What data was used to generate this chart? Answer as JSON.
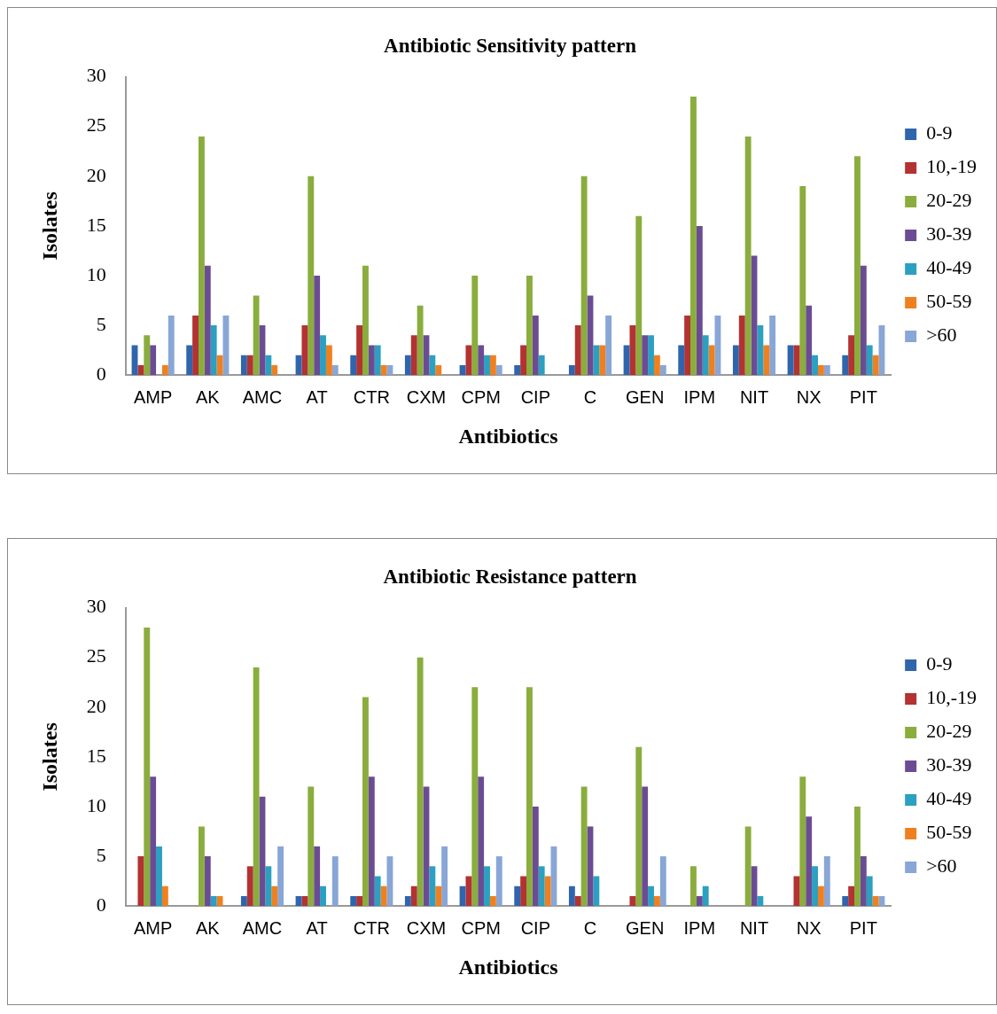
{
  "chart_data": [
    {
      "type": "bar",
      "title": "Antibiotic Sensitivity pattern",
      "xlabel": "Antibiotics",
      "ylabel": "Isolates",
      "categories": [
        "AMP",
        "AK",
        "AMC",
        "AT",
        "CTR",
        "CXM",
        "CPM",
        "CIP",
        "C",
        "GEN",
        "IPM",
        "NIT",
        "NX",
        "PIT"
      ],
      "ylim": [
        0,
        30
      ],
      "yticks": [
        0,
        5,
        10,
        15,
        20,
        25,
        30
      ],
      "grid": false,
      "legend": "right",
      "series": [
        {
          "name": "0-9",
          "color": "#2f65ad",
          "values": [
            3,
            3,
            2,
            2,
            2,
            2,
            1,
            1,
            1,
            3,
            3,
            3,
            3,
            2
          ]
        },
        {
          "name": "10,-19",
          "color": "#b33232",
          "values": [
            1,
            6,
            2,
            5,
            5,
            4,
            3,
            3,
            5,
            5,
            6,
            6,
            3,
            4
          ]
        },
        {
          "name": "20-29",
          "color": "#8aad3d",
          "values": [
            4,
            24,
            8,
            20,
            11,
            7,
            10,
            10,
            20,
            16,
            28,
            24,
            19,
            22
          ]
        },
        {
          "name": "30-39",
          "color": "#6b4c94",
          "values": [
            3,
            11,
            5,
            10,
            3,
            4,
            3,
            6,
            8,
            4,
            15,
            12,
            7,
            11
          ]
        },
        {
          "name": "40-49",
          "color": "#2ba0c0",
          "values": [
            0,
            5,
            2,
            4,
            3,
            2,
            2,
            2,
            3,
            4,
            4,
            5,
            2,
            3
          ]
        },
        {
          "name": "50-59",
          "color": "#f0801f",
          "values": [
            1,
            2,
            1,
            3,
            1,
            1,
            2,
            0,
            3,
            2,
            3,
            3,
            1,
            2
          ]
        },
        {
          "name": ">60",
          "color": "#88a6d6",
          "values": [
            6,
            6,
            0,
            1,
            1,
            0,
            1,
            0,
            6,
            1,
            6,
            6,
            1,
            5
          ]
        }
      ]
    },
    {
      "type": "bar",
      "title": "Antibiotic Resistance pattern",
      "xlabel": "Antibiotics",
      "ylabel": "Isolates",
      "categories": [
        "AMP",
        "AK",
        "AMC",
        "AT",
        "CTR",
        "CXM",
        "CPM",
        "CIP",
        "C",
        "GEN",
        "IPM",
        "NIT",
        "NX",
        "PIT"
      ],
      "ylim": [
        0,
        30
      ],
      "yticks": [
        0,
        5,
        10,
        15,
        20,
        25,
        30
      ],
      "grid": false,
      "legend": "right",
      "series": [
        {
          "name": "0-9",
          "color": "#2f65ad",
          "values": [
            0,
            0,
            1,
            1,
            1,
            1,
            2,
            2,
            2,
            0,
            0,
            0,
            0,
            1
          ]
        },
        {
          "name": "10,-19",
          "color": "#b33232",
          "values": [
            5,
            0,
            4,
            1,
            1,
            2,
            3,
            3,
            1,
            1,
            0,
            0,
            3,
            2
          ]
        },
        {
          "name": "20-29",
          "color": "#8aad3d",
          "values": [
            28,
            8,
            24,
            12,
            21,
            25,
            22,
            22,
            12,
            16,
            4,
            8,
            13,
            10
          ]
        },
        {
          "name": "30-39",
          "color": "#6b4c94",
          "values": [
            13,
            5,
            11,
            6,
            13,
            12,
            13,
            10,
            8,
            12,
            1,
            4,
            9,
            5
          ]
        },
        {
          "name": "40-49",
          "color": "#2ba0c0",
          "values": [
            6,
            1,
            4,
            2,
            3,
            4,
            4,
            4,
            3,
            2,
            2,
            1,
            4,
            3
          ]
        },
        {
          "name": "50-59",
          "color": "#f0801f",
          "values": [
            2,
            1,
            2,
            0,
            2,
            2,
            1,
            3,
            0,
            1,
            0,
            0,
            2,
            1
          ]
        },
        {
          "name": ">60",
          "color": "#88a6d6",
          "values": [
            0,
            0,
            6,
            5,
            5,
            6,
            5,
            6,
            0,
            5,
            0,
            0,
            5,
            1
          ]
        }
      ]
    }
  ]
}
